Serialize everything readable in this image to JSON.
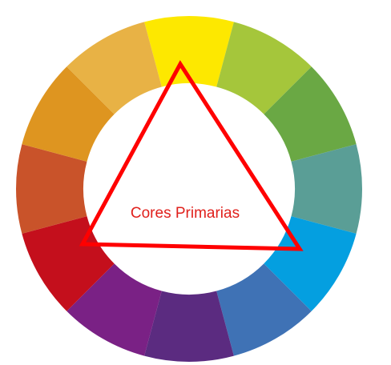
{
  "diagram": {
    "label": "Cores Primarias",
    "label_color": "#e0201c",
    "triangle_color": "#ff0000",
    "ring_colors": [
      "#fde800",
      "#a5c63b",
      "#6aa844",
      "#5a9e96",
      "#049fe0",
      "#3f72b5",
      "#5b2b80",
      "#7a2185",
      "#c40f1c",
      "#c9532a",
      "#de9520",
      "#e8b245"
    ]
  }
}
